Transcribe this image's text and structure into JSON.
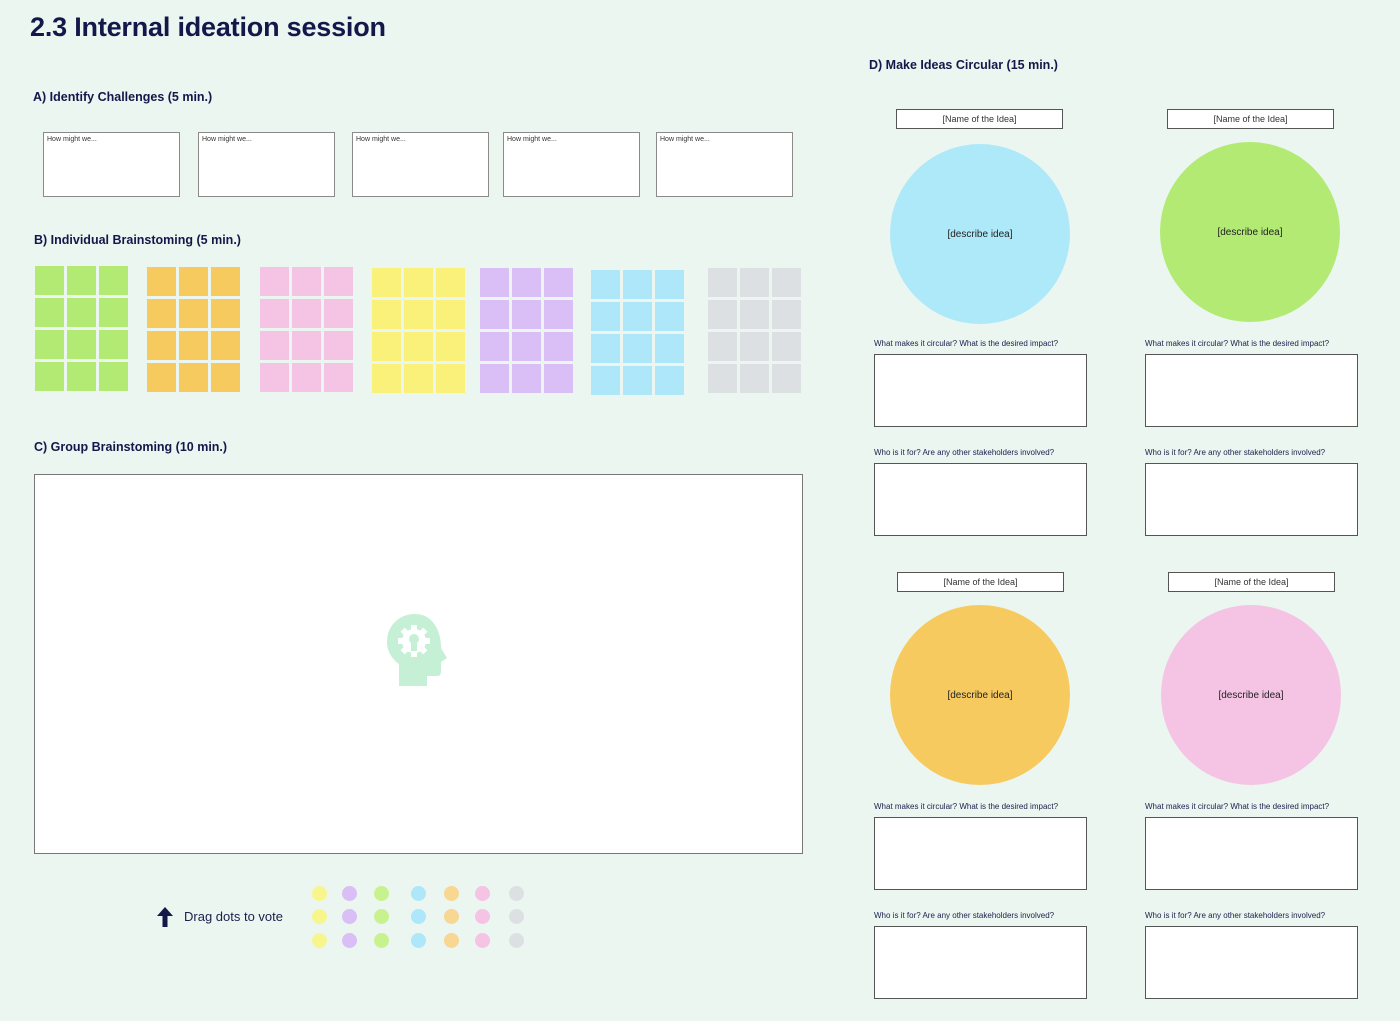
{
  "page": {
    "title": "2.3 Internal ideation session"
  },
  "section_a": {
    "title": "A) Identify Challenges (5 min.)",
    "boxes": [
      "How might we...",
      "How might we...",
      "How might we...",
      "How might we...",
      "How might we..."
    ]
  },
  "section_b": {
    "title": "B) Individual Brainstoming (5 min.)",
    "grids": [
      {
        "color": "#b2ea74"
      },
      {
        "color": "#f7ca60"
      },
      {
        "color": "#f5c3e3"
      },
      {
        "color": "#f9f17a"
      },
      {
        "color": "#d9bff5"
      },
      {
        "color": "#aee6fa"
      },
      {
        "color": "#dde0e3"
      }
    ]
  },
  "section_c": {
    "title": "C) Group Brainstoming (10 min.)",
    "icon": "brain-lightbulb-icon",
    "icon_color": "#c5f0d5"
  },
  "voting": {
    "label": "Drag dots to vote",
    "dot_colors": [
      "#f9f58d",
      "#d9bff5",
      "#c8f28e",
      "#aee6fa",
      "#f7d792",
      "#f5c3e3",
      "#dde0e3"
    ]
  },
  "section_d": {
    "title": "D) Make Ideas Circular (15 min.)",
    "ideas": [
      {
        "name": "[Name of the Idea]",
        "describe": "[describe idea]",
        "color": "#aee9fa",
        "q1": "What makes it circular?  What is the desired impact?",
        "q2": "Who is it for? Are any other stakeholders involved?"
      },
      {
        "name": "[Name of the Idea]",
        "describe": "[describe idea]",
        "color": "#b2ea74",
        "q1": "What makes it circular?  What is the desired impact?",
        "q2": "Who is it for? Are any other stakeholders involved?"
      },
      {
        "name": "[Name of the Idea]",
        "describe": "[describe idea]",
        "color": "#f7ca60",
        "q1": "What makes it circular?  What is the desired impact?",
        "q2": "Who is it for? Are any other stakeholders involved?"
      },
      {
        "name": "[Name of the Idea]",
        "describe": "[describe idea]",
        "color": "#f5c3e3",
        "q1": "What makes it circular?  What is the desired impact?",
        "q2": "Who is it for? Are any other stakeholders involved?"
      }
    ]
  }
}
